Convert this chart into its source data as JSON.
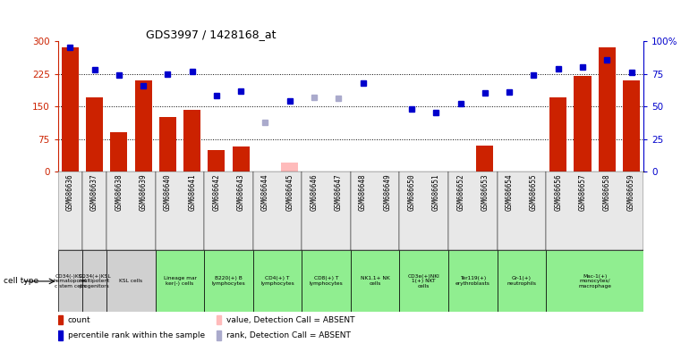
{
  "title": "GDS3997 / 1428168_at",
  "samples": [
    "GSM686636",
    "GSM686637",
    "GSM686638",
    "GSM686639",
    "GSM686640",
    "GSM686641",
    "GSM686642",
    "GSM686643",
    "GSM686644",
    "GSM686645",
    "GSM686646",
    "GSM686647",
    "GSM686648",
    "GSM686649",
    "GSM686650",
    "GSM686651",
    "GSM686652",
    "GSM686653",
    "GSM686654",
    "GSM686655",
    "GSM686656",
    "GSM686657",
    "GSM686658",
    "GSM686659"
  ],
  "count_values": [
    285,
    170,
    90,
    210,
    125,
    142,
    50,
    58,
    0,
    20,
    0,
    0,
    0,
    0,
    0,
    0,
    0,
    60,
    0,
    0,
    170,
    220,
    285,
    210
  ],
  "count_absent": [
    false,
    false,
    false,
    false,
    false,
    false,
    false,
    false,
    true,
    true,
    true,
    true,
    true,
    true,
    true,
    true,
    true,
    false,
    true,
    true,
    false,
    false,
    false,
    false
  ],
  "percentile_values": [
    95,
    78,
    74,
    66,
    75,
    77,
    58,
    62,
    38,
    54,
    57,
    56,
    68,
    0,
    48,
    45,
    52,
    60,
    61,
    74,
    79,
    80,
    86,
    76
  ],
  "percentile_absent": [
    false,
    false,
    false,
    false,
    false,
    false,
    false,
    false,
    true,
    false,
    true,
    true,
    false,
    true,
    false,
    false,
    false,
    false,
    false,
    false,
    false,
    false,
    false,
    false
  ],
  "cell_type_groups": [
    {
      "label": "CD34(-)KSL\nhematopoiet\nc stem cells",
      "start": 0,
      "end": 0,
      "color": "#d0d0d0"
    },
    {
      "label": "CD34(+)KSL\nmultipotent\nprogenitors",
      "start": 1,
      "end": 1,
      "color": "#d0d0d0"
    },
    {
      "label": "KSL cells",
      "start": 2,
      "end": 3,
      "color": "#d0d0d0"
    },
    {
      "label": "Lineage mar\nker(-) cells",
      "start": 4,
      "end": 5,
      "color": "#90ee90"
    },
    {
      "label": "B220(+) B\nlymphocytes",
      "start": 6,
      "end": 7,
      "color": "#90ee90"
    },
    {
      "label": "CD4(+) T\nlymphocytes",
      "start": 8,
      "end": 9,
      "color": "#90ee90"
    },
    {
      "label": "CD8(+) T\nlymphocytes",
      "start": 10,
      "end": 11,
      "color": "#90ee90"
    },
    {
      "label": "NK1.1+ NK\ncells",
      "start": 12,
      "end": 13,
      "color": "#90ee90"
    },
    {
      "label": "CD3e(+)NKl\n1(+) NKT\ncells",
      "start": 14,
      "end": 15,
      "color": "#90ee90"
    },
    {
      "label": "Ter119(+)\nerythroblasts",
      "start": 16,
      "end": 17,
      "color": "#90ee90"
    },
    {
      "label": "Gr-1(+)\nneutrophils",
      "start": 18,
      "end": 19,
      "color": "#90ee90"
    },
    {
      "label": "Mac-1(+)\nmonocytes/\nmacrophage",
      "start": 20,
      "end": 23,
      "color": "#90ee90"
    }
  ],
  "ylim_left": [
    0,
    300
  ],
  "ylim_right": [
    0,
    100
  ],
  "yticks_left": [
    0,
    75,
    150,
    225,
    300
  ],
  "yticks_right": [
    0,
    25,
    50,
    75,
    100
  ],
  "bar_color_present": "#cc2200",
  "bar_color_absent": "#ffbbbb",
  "dot_color_present": "#0000cc",
  "dot_color_absent": "#aaaacc",
  "background_color": "#ffffff",
  "cell_type_label": "cell type"
}
